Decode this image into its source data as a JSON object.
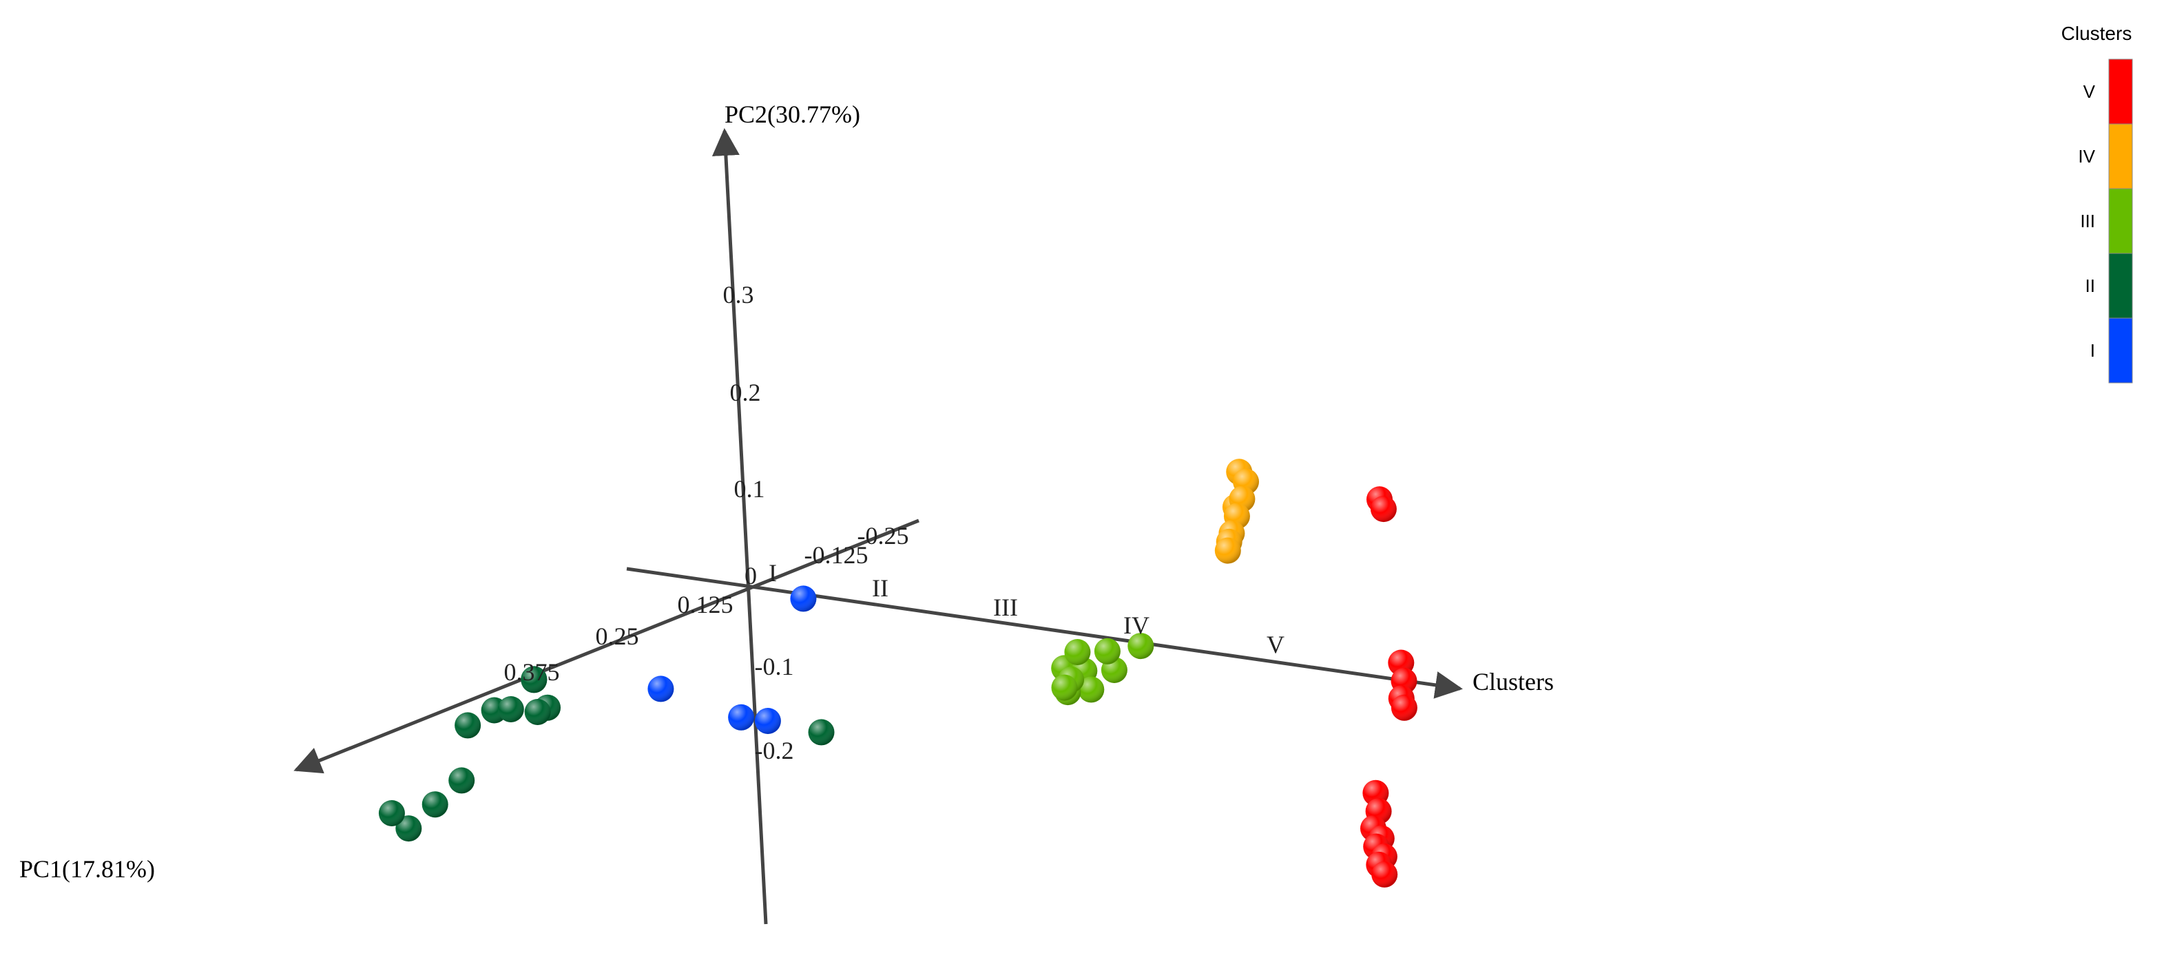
{
  "chart_data": {
    "type": "scatter",
    "projection": "3d",
    "axes": {
      "pc1": {
        "label": "PC1(17.81%)",
        "ticks": [
          "0.375",
          "0.25",
          "0.125"
        ]
      },
      "pc2": {
        "label": "PC2(30.77%)",
        "ticks": [
          "0.3",
          "0.2",
          "0.1",
          "-0.1",
          "-0.2"
        ]
      },
      "clusters": {
        "label": "Clusters",
        "ticks": [
          "I",
          "II",
          "III",
          "IV",
          "V"
        ]
      },
      "depth": {
        "ticks": [
          "-0.125",
          "-0.25"
        ]
      }
    },
    "origin_label": "0",
    "legend": {
      "title": "Clusters",
      "position": "top-right",
      "items": [
        {
          "label": "V",
          "color": "#ff0000"
        },
        {
          "label": "IV",
          "color": "#ffaa00"
        },
        {
          "label": "III",
          "color": "#66bb00"
        },
        {
          "label": "II",
          "color": "#006633"
        },
        {
          "label": "I",
          "color": "#0044ff"
        }
      ]
    },
    "series": [
      {
        "cluster": "I",
        "color": "#0044ff",
        "points": [
          {
            "pc1": 0.05,
            "pc2": 0.03,
            "pos": 0.8
          },
          {
            "pc1": 0.22,
            "pc2": 0.0,
            "pos": 1.0
          },
          {
            "pc1": 0.22,
            "pc2": -0.02,
            "pos": 1.6
          },
          {
            "pc1": 0.22,
            "pc2": -0.02,
            "pos": 1.8
          }
        ]
      },
      {
        "cluster": "II",
        "color": "#006633",
        "points": [
          {
            "pc1": 0.4,
            "pc2": 0.09,
            "pos": 1.4
          },
          {
            "pc1": 0.42,
            "pc2": 0.06,
            "pos": 1.25
          },
          {
            "pc1": 0.44,
            "pc2": 0.05,
            "pos": 1.2
          },
          {
            "pc1": 0.45,
            "pc2": 0.08,
            "pos": 1.6
          },
          {
            "pc1": 0.43,
            "pc2": 0.07,
            "pos": 1.65
          },
          {
            "pc1": 0.4,
            "pc2": 0.06,
            "pos": 1.5
          },
          {
            "pc1": 0.42,
            "pc2": 0.1,
            "pos": 1.55
          },
          {
            "pc1": 0.5,
            "pc2": 0.02,
            "pos": 1.6
          },
          {
            "pc1": 0.52,
            "pc2": 0.0,
            "pos": 1.55
          },
          {
            "pc1": 0.54,
            "pc2": -0.02,
            "pos": 1.5
          },
          {
            "pc1": 0.55,
            "pc2": 0.0,
            "pos": 1.45
          },
          {
            "pc1": 0.1,
            "pc2": -0.09,
            "pos": 1.3
          }
        ]
      },
      {
        "cluster": "III",
        "color": "#66bb00",
        "points": [
          {
            "pc1": 0.0,
            "pc2": 0.0,
            "pos": 2.95
          },
          {
            "pc1": 0.03,
            "pc2": -0.02,
            "pos": 2.6
          },
          {
            "pc1": 0.03,
            "pc2": -0.02,
            "pos": 2.75
          },
          {
            "pc1": 0.02,
            "pc2": -0.02,
            "pos": 2.9
          },
          {
            "pc1": 0.03,
            "pc2": -0.04,
            "pos": 2.8
          },
          {
            "pc1": 0.06,
            "pc2": -0.03,
            "pos": 2.85
          },
          {
            "pc1": 0.07,
            "pc2": -0.01,
            "pos": 2.95
          },
          {
            "pc1": 0.07,
            "pc2": -0.02,
            "pos": 2.9
          },
          {
            "pc1": 0.03,
            "pc2": 0.0,
            "pos": 2.7
          },
          {
            "pc1": 0.02,
            "pc2": 0.0,
            "pos": 2.85
          }
        ]
      },
      {
        "cluster": "IV",
        "color": "#ffaa00",
        "points": [
          {
            "pc1": 0.0,
            "pc2": 0.21,
            "pos": 3.7
          },
          {
            "pc1": 0.0,
            "pc2": 0.2,
            "pos": 3.75
          },
          {
            "pc1": 0.0,
            "pc2": 0.17,
            "pos": 3.67
          },
          {
            "pc1": 0.0,
            "pc2": 0.18,
            "pos": 3.72
          },
          {
            "pc1": 0.0,
            "pc2": 0.16,
            "pos": 3.68
          },
          {
            "pc1": 0.0,
            "pc2": 0.14,
            "pos": 3.64
          },
          {
            "pc1": 0.0,
            "pc2": 0.13,
            "pos": 3.62
          },
          {
            "pc1": 0.0,
            "pc2": 0.12,
            "pos": 3.61
          }
        ]
      },
      {
        "cluster": "V",
        "color": "#ff0000",
        "points": [
          {
            "pc1": 0.0,
            "pc2": 0.2,
            "pos": 4.75
          },
          {
            "pc1": 0.0,
            "pc2": 0.19,
            "pos": 4.78
          },
          {
            "pc1": 0.0,
            "pc2": 0.02,
            "pos": 4.9
          },
          {
            "pc1": 0.0,
            "pc2": 0.0,
            "pos": 4.92
          },
          {
            "pc1": 0.0,
            "pc2": -0.02,
            "pos": 4.9
          },
          {
            "pc1": 0.0,
            "pc2": -0.03,
            "pos": 4.92
          },
          {
            "pc1": 0.0,
            "pc2": -0.13,
            "pos": 4.7
          },
          {
            "pc1": 0.0,
            "pc2": -0.15,
            "pos": 4.72
          },
          {
            "pc1": 0.0,
            "pc2": -0.17,
            "pos": 4.68
          },
          {
            "pc1": 0.0,
            "pc2": -0.18,
            "pos": 4.74
          },
          {
            "pc1": 0.0,
            "pc2": -0.19,
            "pos": 4.7
          },
          {
            "pc1": 0.0,
            "pc2": -0.2,
            "pos": 4.76
          },
          {
            "pc1": 0.0,
            "pc2": -0.21,
            "pos": 4.72
          },
          {
            "pc1": 0.0,
            "pc2": -0.22,
            "pos": 4.76
          }
        ]
      }
    ]
  }
}
